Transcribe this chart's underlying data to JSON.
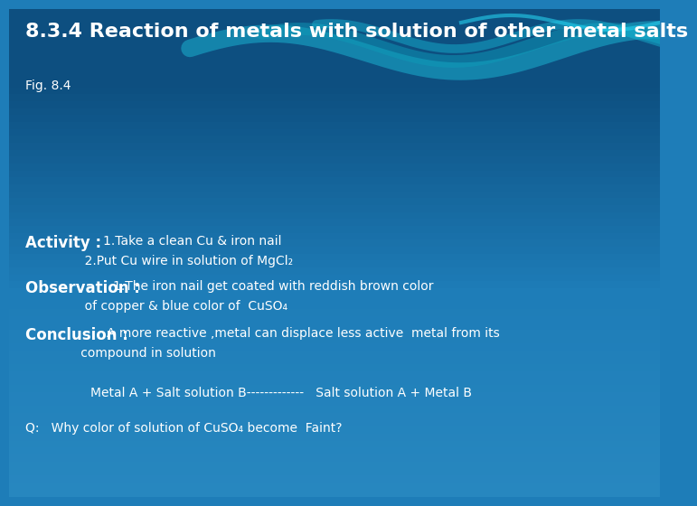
{
  "title": "8.3.4 Reaction of metals with solution of other metal salts",
  "fig_label": "Fig. 8.4",
  "activity_bold": "Activity :  ",
  "activity_line1": "1.Take a clean Cu & iron nail",
  "activity_line2": "               2.Put Cu wire in solution of MgCl₂",
  "observation_bold": "Observation : ",
  "observation_line1": "1.The iron nail get coated with reddish brown color",
  "observation_line2": "               of copper & blue color of  CuSO₄",
  "conclusion_bold": "Conclusion : ",
  "conclusion_line1": "A more reactive ,metal can displace less active  metal from its",
  "conclusion_line2": "              compound in solution",
  "reaction_text": "Metal A + Salt solution B-------------   Salt solution A + Metal B",
  "question_text": "Q:   Why color of solution of CuSO₄ become  Faint?",
  "bg_top_color": "#1565a0",
  "bg_mid_color": "#1e7db8",
  "bg_bot_color": "#2888c0",
  "text_color": "#ffffff",
  "title_fontsize": 16,
  "body_fontsize": 10,
  "bold_fontsize": 12,
  "fig_label_fontsize": 10
}
